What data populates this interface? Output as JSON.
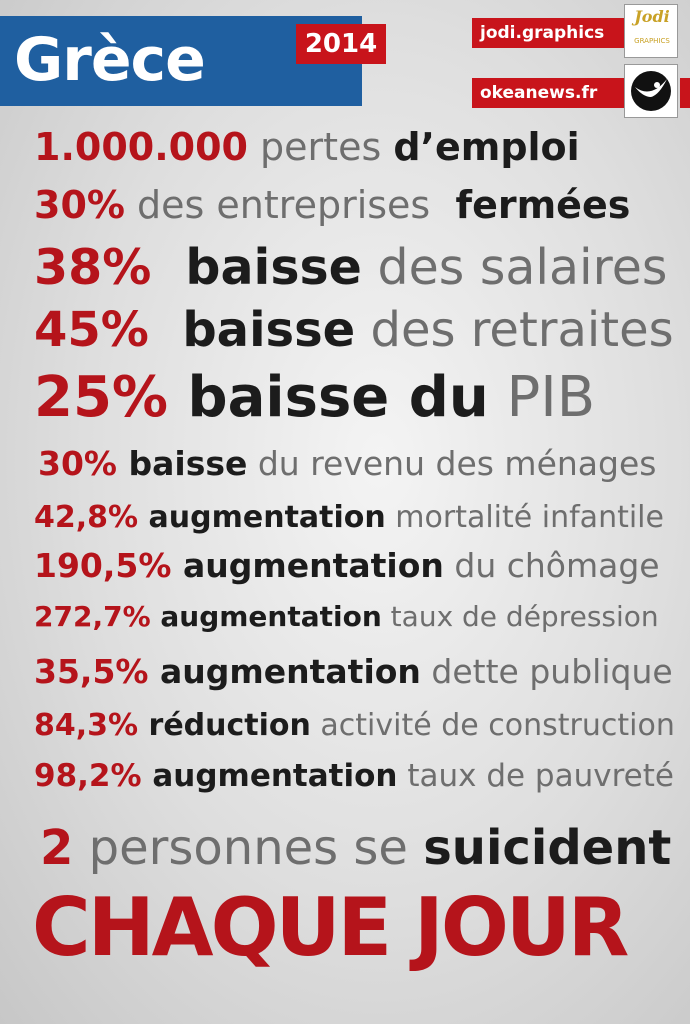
{
  "header": {
    "title": "Grèce",
    "year": "2014",
    "credits": [
      "jodi.graphics",
      "okeanews.fr"
    ],
    "logo_text": "Jodi",
    "logo_sub": "GRAPHICS"
  },
  "stats": [
    {
      "num": "1.000.000",
      "parts": [
        {
          "t": " pertes ",
          "s": "light"
        },
        {
          "t": "d’emploi",
          "s": "bold"
        }
      ]
    },
    {
      "num": "30%",
      "parts": [
        {
          "t": " des entreprises ",
          "s": "light"
        },
        {
          "t": " fermées",
          "s": "bold"
        }
      ]
    },
    {
      "num": "38%",
      "parts": [
        {
          "t": "  baisse",
          "s": "bold"
        },
        {
          "t": " des salaires",
          "s": "light"
        }
      ]
    },
    {
      "num": "45%",
      "parts": [
        {
          "t": "  baisse",
          "s": "bold"
        },
        {
          "t": " des retraites",
          "s": "light"
        }
      ]
    },
    {
      "num": "25%",
      "parts": [
        {
          "t": " baisse du",
          "s": "bold"
        },
        {
          "t": " PIB",
          "s": "light"
        }
      ]
    },
    {
      "num": "30%",
      "parts": [
        {
          "t": " baisse",
          "s": "bold"
        },
        {
          "t": " du revenu des ménages",
          "s": "light"
        }
      ]
    },
    {
      "num": "42,8%",
      "parts": [
        {
          "t": " augmentation",
          "s": "bold"
        },
        {
          "t": " mortalité infantile",
          "s": "light"
        }
      ]
    },
    {
      "num": "190,5%",
      "parts": [
        {
          "t": " augmentation",
          "s": "bold"
        },
        {
          "t": " du chômage",
          "s": "light"
        }
      ]
    },
    {
      "num": "272,7%",
      "parts": [
        {
          "t": " augmentation",
          "s": "bold"
        },
        {
          "t": " taux de dépression",
          "s": "light"
        }
      ]
    },
    {
      "num": "35,5%",
      "parts": [
        {
          "t": " augmentation",
          "s": "bold"
        },
        {
          "t": " dette publique",
          "s": "light"
        }
      ]
    },
    {
      "num": "84,3%",
      "parts": [
        {
          "t": " réduction",
          "s": "bold"
        },
        {
          "t": " activité de construction",
          "s": "light"
        }
      ]
    },
    {
      "num": "98,2%",
      "parts": [
        {
          "t": " augmentation",
          "s": "bold"
        },
        {
          "t": " taux de pauvreté",
          "s": "light"
        }
      ]
    },
    {
      "num": "2",
      "parts": [
        {
          "t": " personnes se ",
          "s": "light"
        },
        {
          "t": "suicident",
          "s": "bold"
        }
      ]
    }
  ],
  "closing": "CHAQUE JOUR",
  "colors": {
    "accent": "#b5141b",
    "title_bg": "#1f5fa0",
    "dark_text": "#1c1c1c",
    "light_text": "#6e6e6e"
  }
}
